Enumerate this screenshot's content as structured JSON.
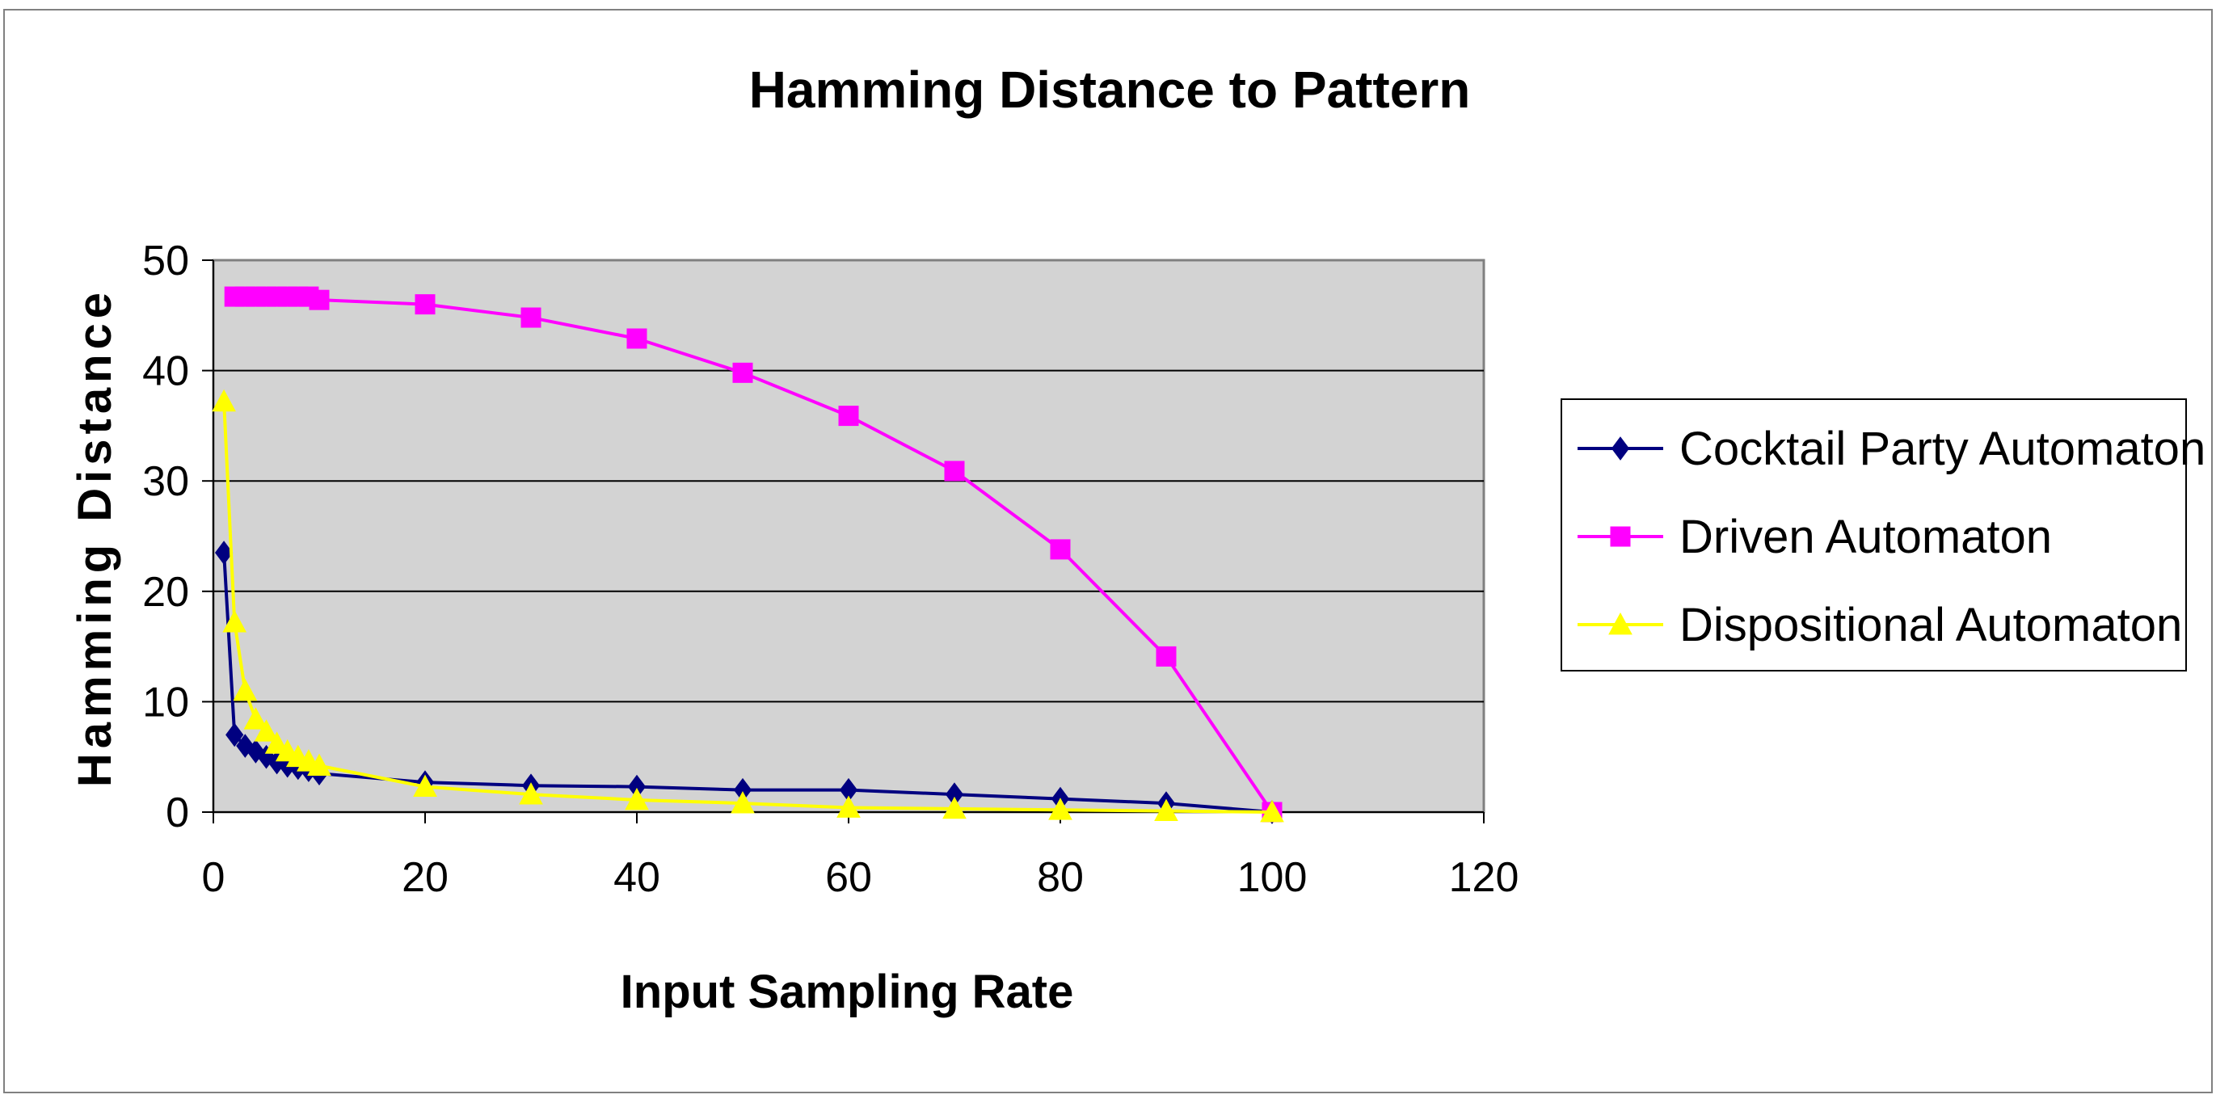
{
  "chart_data": {
    "type": "line",
    "title": "Hamming Distance to Pattern",
    "xlabel": "Input Sampling Rate",
    "ylabel": "Hamming Distance",
    "xlim": [
      0,
      120
    ],
    "ylim": [
      0,
      50
    ],
    "xticks": [
      0,
      20,
      40,
      60,
      80,
      100,
      120
    ],
    "yticks": [
      0,
      10,
      20,
      30,
      40,
      50
    ],
    "grid": true,
    "legend_position": "right",
    "series": [
      {
        "name": "Cocktail Party Automaton",
        "color": "#000080",
        "marker": "diamond",
        "points": [
          [
            1,
            23.5
          ],
          [
            2,
            7
          ],
          [
            3,
            6
          ],
          [
            4,
            5.5
          ],
          [
            5,
            5
          ],
          [
            6,
            4.5
          ],
          [
            7,
            4.2
          ],
          [
            8,
            4
          ],
          [
            9,
            3.8
          ],
          [
            10,
            3.5
          ],
          [
            20,
            2.7
          ],
          [
            30,
            2.4
          ],
          [
            40,
            2.3
          ],
          [
            50,
            2
          ],
          [
            60,
            2
          ],
          [
            70,
            1.6
          ],
          [
            80,
            1.2
          ],
          [
            90,
            0.8
          ],
          [
            100,
            0
          ]
        ]
      },
      {
        "name": "Driven Automaton",
        "color": "#ff00ff",
        "marker": "square",
        "points": [
          [
            2,
            46.7
          ],
          [
            3,
            46.7
          ],
          [
            4,
            46.7
          ],
          [
            5,
            46.7
          ],
          [
            6,
            46.7
          ],
          [
            7,
            46.7
          ],
          [
            8,
            46.7
          ],
          [
            9,
            46.7
          ],
          [
            10,
            46.4
          ],
          [
            20,
            46
          ],
          [
            30,
            44.8
          ],
          [
            40,
            42.9
          ],
          [
            50,
            39.8
          ],
          [
            60,
            35.9
          ],
          [
            70,
            30.9
          ],
          [
            80,
            23.8
          ],
          [
            90,
            14.1
          ],
          [
            100,
            0
          ]
        ]
      },
      {
        "name": "Dispositional Automaton",
        "color": "#ffff00",
        "marker": "triangle",
        "points": [
          [
            1,
            37.2
          ],
          [
            2,
            17.2
          ],
          [
            3,
            11
          ],
          [
            4,
            8.4
          ],
          [
            5,
            7.3
          ],
          [
            6,
            6.2
          ],
          [
            7,
            5.5
          ],
          [
            8,
            5
          ],
          [
            9,
            4.6
          ],
          [
            10,
            4.2
          ],
          [
            20,
            2.3
          ],
          [
            30,
            1.6
          ],
          [
            40,
            1.1
          ],
          [
            50,
            0.8
          ],
          [
            60,
            0.4
          ],
          [
            70,
            0.3
          ],
          [
            80,
            0.2
          ],
          [
            90,
            0.1
          ],
          [
            100,
            0
          ]
        ]
      }
    ]
  }
}
